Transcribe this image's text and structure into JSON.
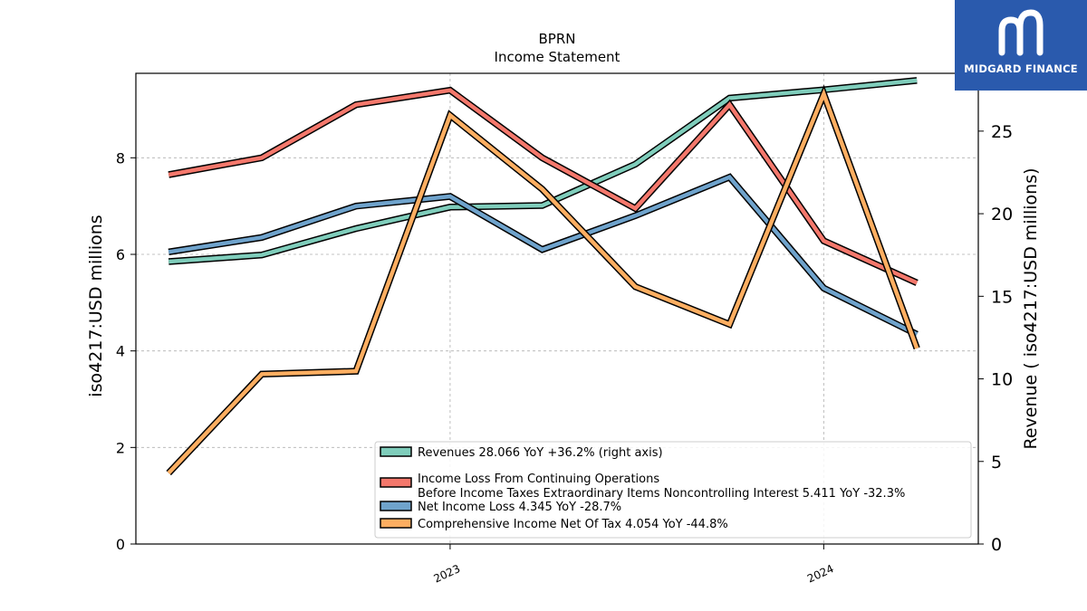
{
  "brand": {
    "name": "MIDGARD FINANCE",
    "bg_color": "#2a5aad"
  },
  "chart_data": {
    "type": "line",
    "title": "BPRN",
    "subtitle": "Income Statement",
    "ylabel_left": "iso4217:USD  millions",
    "ylabel_right": "Revenue ( iso4217:USD  millions)",
    "x_dates": [
      "2022-04-01",
      "2022-07-01",
      "2022-10-01",
      "2023-01-01",
      "2023-04-01",
      "2023-07-01",
      "2023-10-01",
      "2024-01-01",
      "2024-04-01"
    ],
    "x_range": [
      "2022-02-28",
      "2024-05-31"
    ],
    "x_ticks": [
      {
        "label": "2023",
        "date": "2023-01-01"
      },
      {
        "label": "2024",
        "date": "2024-01-01"
      }
    ],
    "left_axis": {
      "range": [
        0,
        9.75
      ],
      "ticks": [
        0,
        2,
        4,
        6,
        8
      ]
    },
    "right_axis": {
      "range": [
        0,
        28.5
      ],
      "ticks": [
        0,
        5,
        10,
        15,
        20,
        25
      ]
    },
    "grid": true,
    "legend_position": "lower-right",
    "series": [
      {
        "name": "Revenues",
        "legend_lines": [
          "Revenues  28.066 YoY +36.2% (right axis)"
        ],
        "axis": "right",
        "color": "#7fcdbb",
        "values": [
          17.1,
          17.5,
          19.1,
          20.4,
          20.5,
          23.0,
          27.0,
          27.5,
          28.066
        ]
      },
      {
        "name": "Income Loss From Continuing Operations Before Income Taxes Extraordinary Items Noncontrolling Interest",
        "legend_lines": [
          "Income Loss From Continuing Operations",
          "Before Income Taxes Extraordinary Items Noncontrolling Interest  5.411 YoY -32.3%"
        ],
        "axis": "left",
        "color": "#f4786c",
        "values": [
          7.65,
          8.0,
          9.1,
          9.4,
          8.0,
          6.95,
          9.1,
          6.28,
          5.411
        ]
      },
      {
        "name": "Net Income Loss",
        "legend_lines": [
          "Net Income Loss  4.345 YoY -28.7%"
        ],
        "axis": "left",
        "color": "#6fa3cc",
        "values": [
          6.05,
          6.35,
          7.0,
          7.2,
          6.1,
          6.8,
          7.6,
          5.3,
          4.345
        ]
      },
      {
        "name": "Comprehensive Income Net Of Tax",
        "legend_lines": [
          "Comprehensive Income Net Of Tax  4.054 YoY -44.8%"
        ],
        "axis": "left",
        "color": "#fdae61",
        "values": [
          1.47,
          3.52,
          3.58,
          8.88,
          7.35,
          5.33,
          4.55,
          9.32,
          4.054
        ]
      }
    ]
  }
}
